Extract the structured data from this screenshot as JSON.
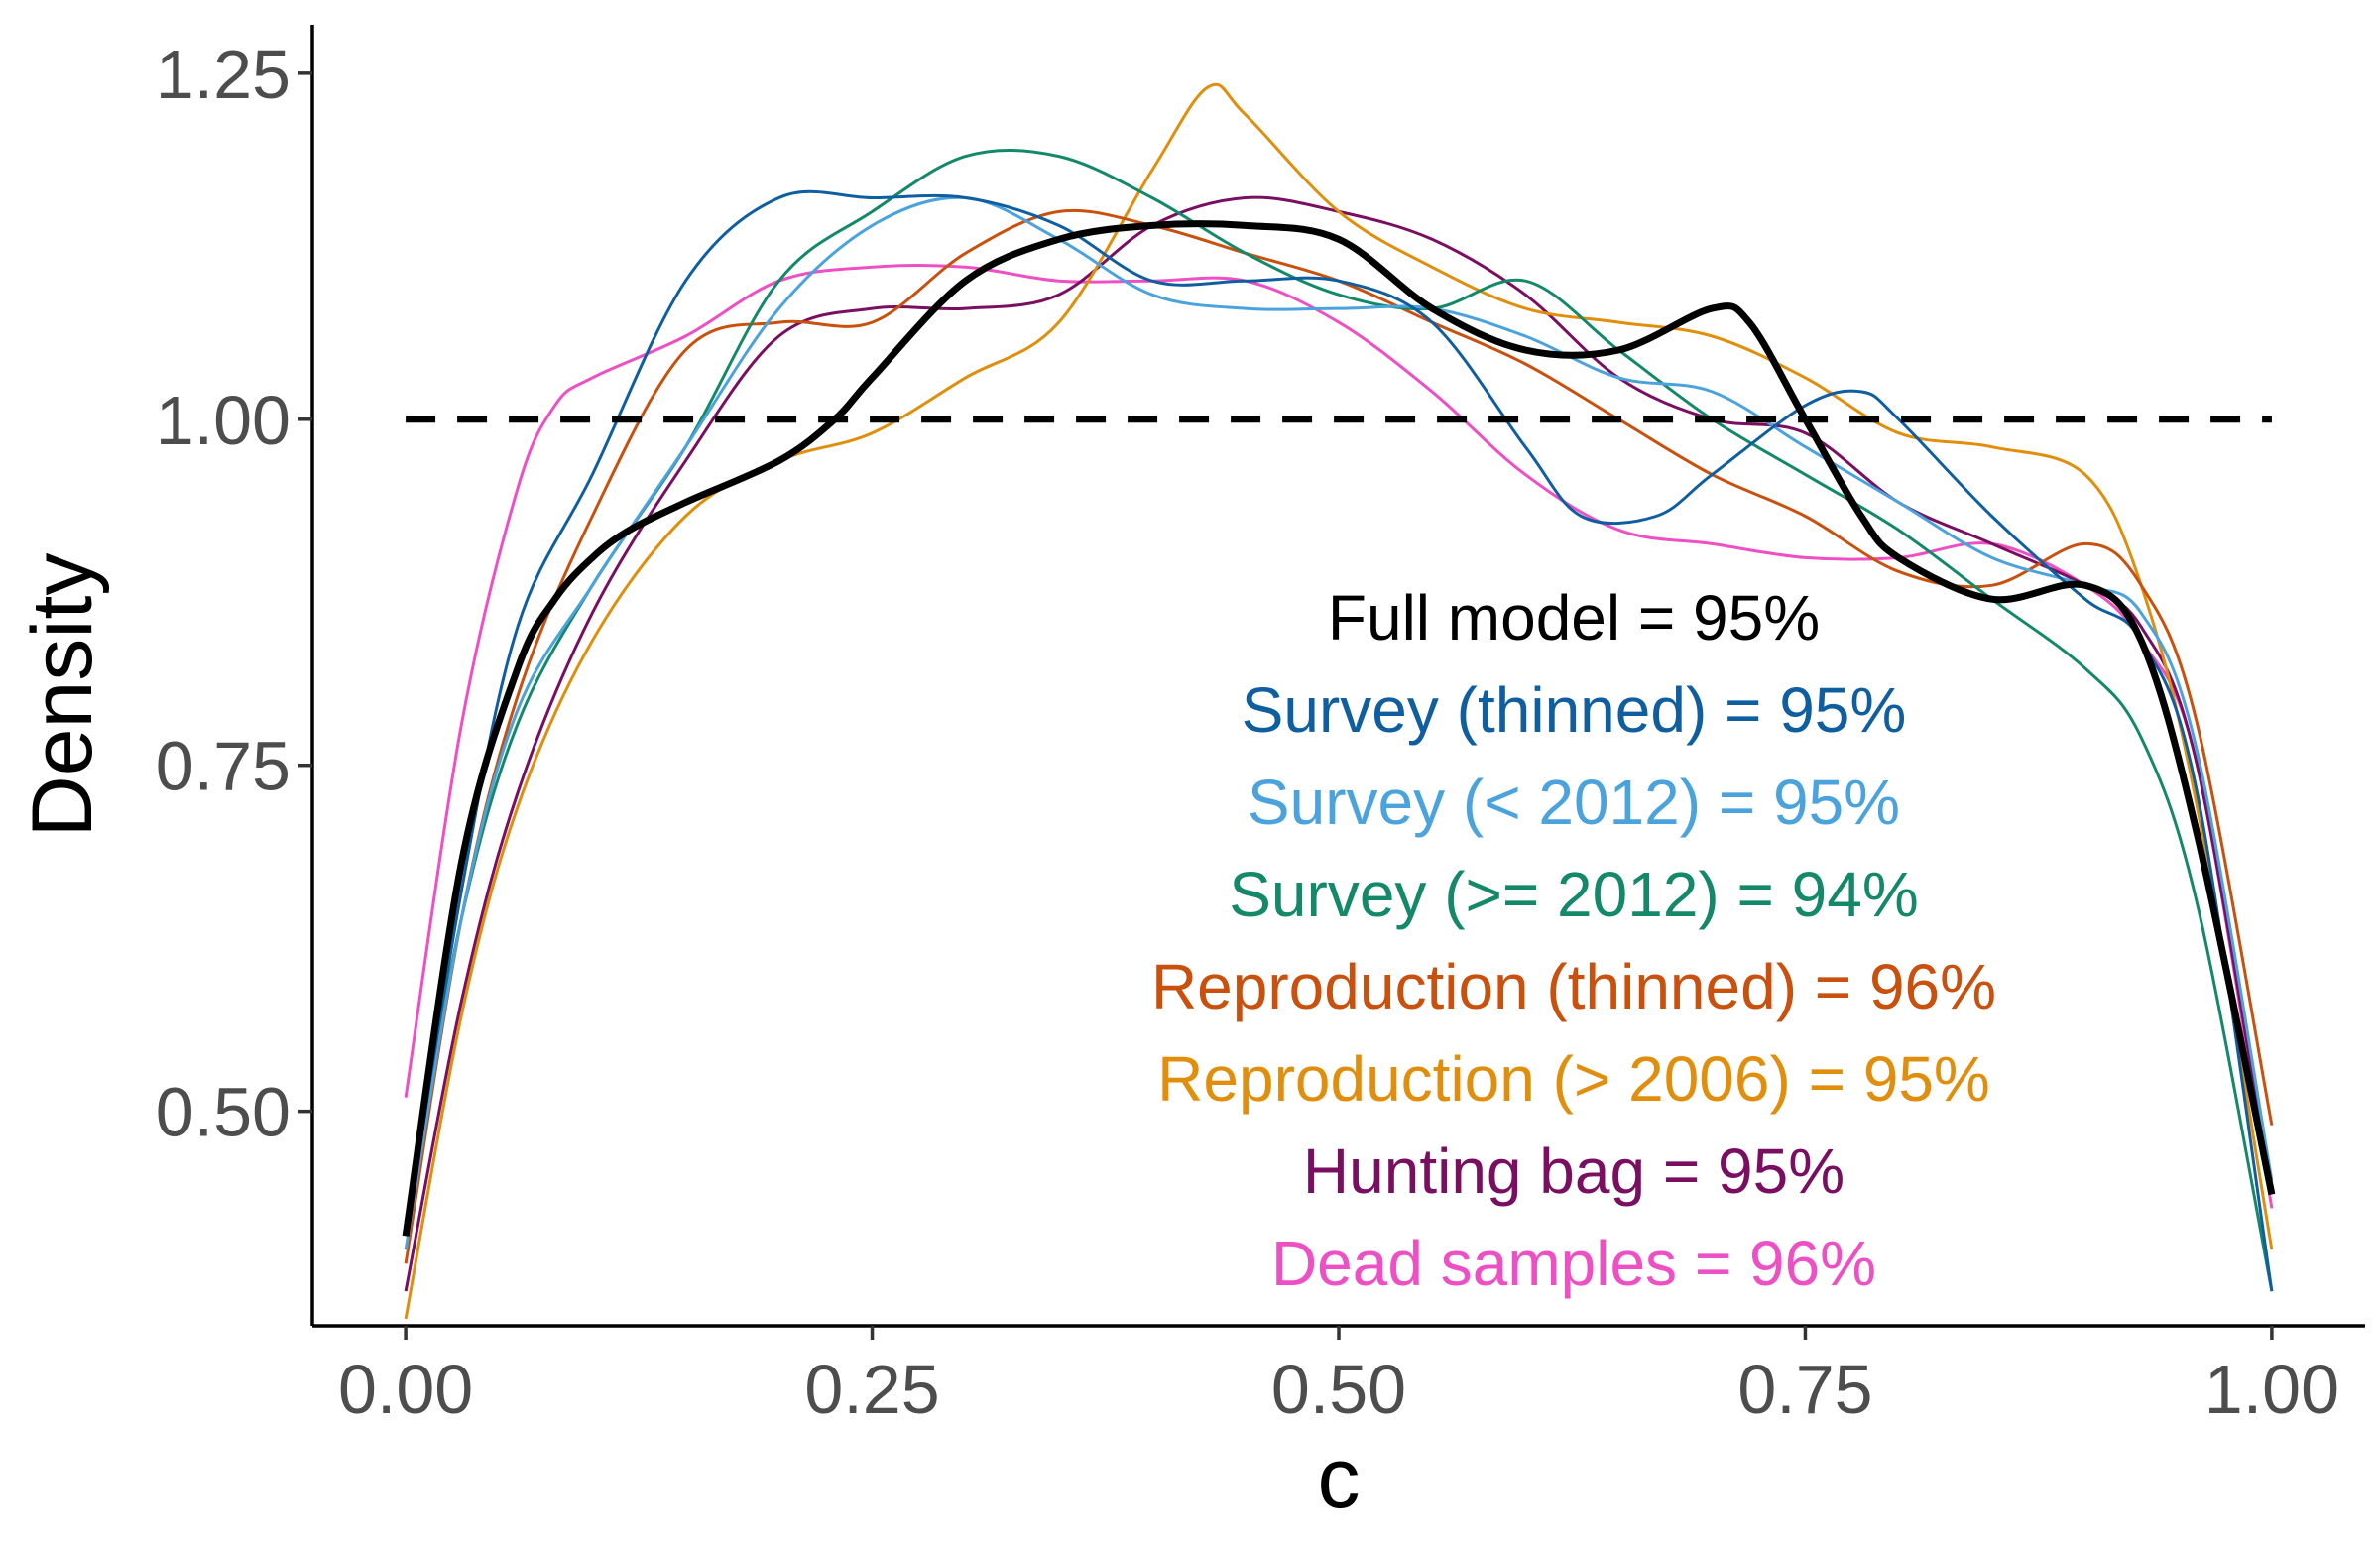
{
  "chart_data": {
    "type": "line",
    "xlabel": "c",
    "ylabel": "Density",
    "xlim": [
      -0.05,
      1.05
    ],
    "ylim": [
      0.345,
      1.285
    ],
    "x_ticks": [
      0.0,
      0.25,
      0.5,
      0.75,
      1.0
    ],
    "x_tick_labels": [
      "0.00",
      "0.25",
      "0.50",
      "0.75",
      "1.00"
    ],
    "y_ticks": [
      0.5,
      0.75,
      1.0,
      1.25
    ],
    "y_tick_labels": [
      "0.50",
      "0.75",
      "1.00",
      "1.25"
    ],
    "grid": false,
    "legend": "none",
    "reference_line": {
      "y": 1.0,
      "style": "dashed",
      "color": "#000000"
    },
    "annotations": [
      {
        "text": "Full model = 95%",
        "color": "#000000"
      },
      {
        "text": "Survey (thinned) = 95%",
        "color": "#0F5FA0"
      },
      {
        "text": "Survey (< 2012) = 95%",
        "color": "#4AA3DD"
      },
      {
        "text": "Survey (>= 2012) = 94%",
        "color": "#13896A"
      },
      {
        "text": "Reproduction (thinned) = 96%",
        "color": "#C9500D"
      },
      {
        "text": "Reproduction (> 2006) = 95%",
        "color": "#E08E0B"
      },
      {
        "text": "Hunting bag = 95%",
        "color": "#7A0F61"
      },
      {
        "text": "Dead samples = 96%",
        "color": "#EE4FC4"
      }
    ],
    "series": [
      {
        "key": "dead",
        "color": "#EE4FC4",
        "width": 3,
        "x": [
          0.0,
          0.03,
          0.06,
          0.08,
          0.1,
          0.15,
          0.2,
          0.25,
          0.3,
          0.35,
          0.4,
          0.45,
          0.5,
          0.55,
          0.6,
          0.65,
          0.7,
          0.75,
          0.8,
          0.85,
          0.9,
          0.93,
          0.96,
          1.0
        ],
        "y": [
          0.51,
          0.78,
          0.95,
          1.01,
          1.03,
          1.06,
          1.1,
          1.11,
          1.11,
          1.1,
          1.1,
          1.1,
          1.07,
          1.02,
          0.96,
          0.92,
          0.91,
          0.9,
          0.9,
          0.91,
          0.88,
          0.84,
          0.75,
          0.43
        ]
      },
      {
        "key": "hunting",
        "color": "#7A0F61",
        "width": 3,
        "x": [
          0.0,
          0.03,
          0.06,
          0.1,
          0.15,
          0.2,
          0.25,
          0.3,
          0.35,
          0.4,
          0.45,
          0.5,
          0.55,
          0.6,
          0.65,
          0.7,
          0.75,
          0.8,
          0.85,
          0.9,
          0.93,
          0.96,
          1.0
        ],
        "y": [
          0.37,
          0.58,
          0.73,
          0.86,
          0.97,
          1.06,
          1.08,
          1.08,
          1.09,
          1.14,
          1.16,
          1.15,
          1.13,
          1.09,
          1.03,
          1.0,
          0.99,
          0.94,
          0.91,
          0.88,
          0.85,
          0.75,
          0.44
        ]
      },
      {
        "key": "repro2006",
        "color": "#E08E0B",
        "width": 3,
        "x": [
          0.0,
          0.03,
          0.06,
          0.1,
          0.15,
          0.2,
          0.25,
          0.3,
          0.35,
          0.4,
          0.43,
          0.45,
          0.5,
          0.55,
          0.6,
          0.65,
          0.7,
          0.75,
          0.8,
          0.85,
          0.9,
          0.93,
          0.96,
          1.0
        ],
        "y": [
          0.35,
          0.57,
          0.72,
          0.84,
          0.93,
          0.97,
          0.99,
          1.03,
          1.07,
          1.18,
          1.24,
          1.22,
          1.15,
          1.11,
          1.08,
          1.07,
          1.06,
          1.03,
          0.99,
          0.98,
          0.96,
          0.88,
          0.72,
          0.4
        ]
      },
      {
        "key": "reprothin",
        "color": "#C9500D",
        "width": 3,
        "x": [
          0.0,
          0.03,
          0.06,
          0.1,
          0.15,
          0.2,
          0.25,
          0.3,
          0.35,
          0.4,
          0.45,
          0.5,
          0.55,
          0.6,
          0.65,
          0.7,
          0.75,
          0.8,
          0.85,
          0.9,
          0.93,
          0.96,
          1.0
        ],
        "y": [
          0.39,
          0.64,
          0.8,
          0.93,
          1.05,
          1.07,
          1.07,
          1.12,
          1.15,
          1.14,
          1.12,
          1.1,
          1.07,
          1.04,
          1.0,
          0.96,
          0.93,
          0.89,
          0.88,
          0.91,
          0.88,
          0.78,
          0.49
        ]
      },
      {
        "key": "survey2012plus",
        "color": "#13896A",
        "width": 3,
        "x": [
          0.0,
          0.03,
          0.06,
          0.1,
          0.15,
          0.2,
          0.25,
          0.3,
          0.35,
          0.4,
          0.45,
          0.5,
          0.55,
          0.6,
          0.65,
          0.7,
          0.75,
          0.8,
          0.85,
          0.9,
          0.93,
          0.96,
          1.0
        ],
        "y": [
          0.42,
          0.64,
          0.78,
          0.88,
          0.98,
          1.1,
          1.15,
          1.19,
          1.19,
          1.16,
          1.12,
          1.09,
          1.08,
          1.1,
          1.05,
          1.0,
          0.96,
          0.92,
          0.87,
          0.82,
          0.77,
          0.65,
          0.37
        ]
      },
      {
        "key": "survey2012",
        "color": "#4AA3DD",
        "width": 3,
        "x": [
          0.0,
          0.03,
          0.06,
          0.1,
          0.15,
          0.2,
          0.25,
          0.3,
          0.35,
          0.4,
          0.45,
          0.5,
          0.55,
          0.6,
          0.65,
          0.7,
          0.75,
          0.8,
          0.85,
          0.9,
          0.93,
          0.96,
          1.0
        ],
        "y": [
          0.4,
          0.64,
          0.79,
          0.88,
          0.98,
          1.08,
          1.14,
          1.16,
          1.13,
          1.09,
          1.08,
          1.08,
          1.08,
          1.06,
          1.03,
          1.02,
          0.98,
          0.94,
          0.9,
          0.88,
          0.86,
          0.76,
          0.45
        ]
      },
      {
        "key": "surveythin",
        "color": "#0F5FA0",
        "width": 3,
        "x": [
          0.0,
          0.03,
          0.06,
          0.1,
          0.15,
          0.2,
          0.25,
          0.3,
          0.35,
          0.4,
          0.45,
          0.5,
          0.55,
          0.6,
          0.63,
          0.67,
          0.7,
          0.75,
          0.78,
          0.8,
          0.85,
          0.9,
          0.93,
          0.96,
          1.0
        ],
        "y": [
          0.41,
          0.66,
          0.85,
          0.96,
          1.1,
          1.16,
          1.16,
          1.16,
          1.14,
          1.1,
          1.1,
          1.1,
          1.07,
          0.98,
          0.93,
          0.93,
          0.96,
          1.01,
          1.02,
          1.0,
          0.93,
          0.87,
          0.84,
          0.73,
          0.37
        ]
      },
      {
        "key": "full",
        "color": "#000000",
        "width": 7,
        "x": [
          0.0,
          0.03,
          0.06,
          0.08,
          0.1,
          0.12,
          0.15,
          0.2,
          0.23,
          0.25,
          0.3,
          0.35,
          0.4,
          0.45,
          0.5,
          0.55,
          0.6,
          0.65,
          0.7,
          0.72,
          0.75,
          0.78,
          0.8,
          0.85,
          0.9,
          0.93,
          0.96,
          1.0
        ],
        "y": [
          0.41,
          0.68,
          0.82,
          0.87,
          0.9,
          0.92,
          0.94,
          0.97,
          1.0,
          1.03,
          1.1,
          1.13,
          1.14,
          1.14,
          1.13,
          1.08,
          1.05,
          1.05,
          1.08,
          1.07,
          1.0,
          0.93,
          0.9,
          0.87,
          0.88,
          0.84,
          0.7,
          0.44
        ]
      }
    ]
  }
}
